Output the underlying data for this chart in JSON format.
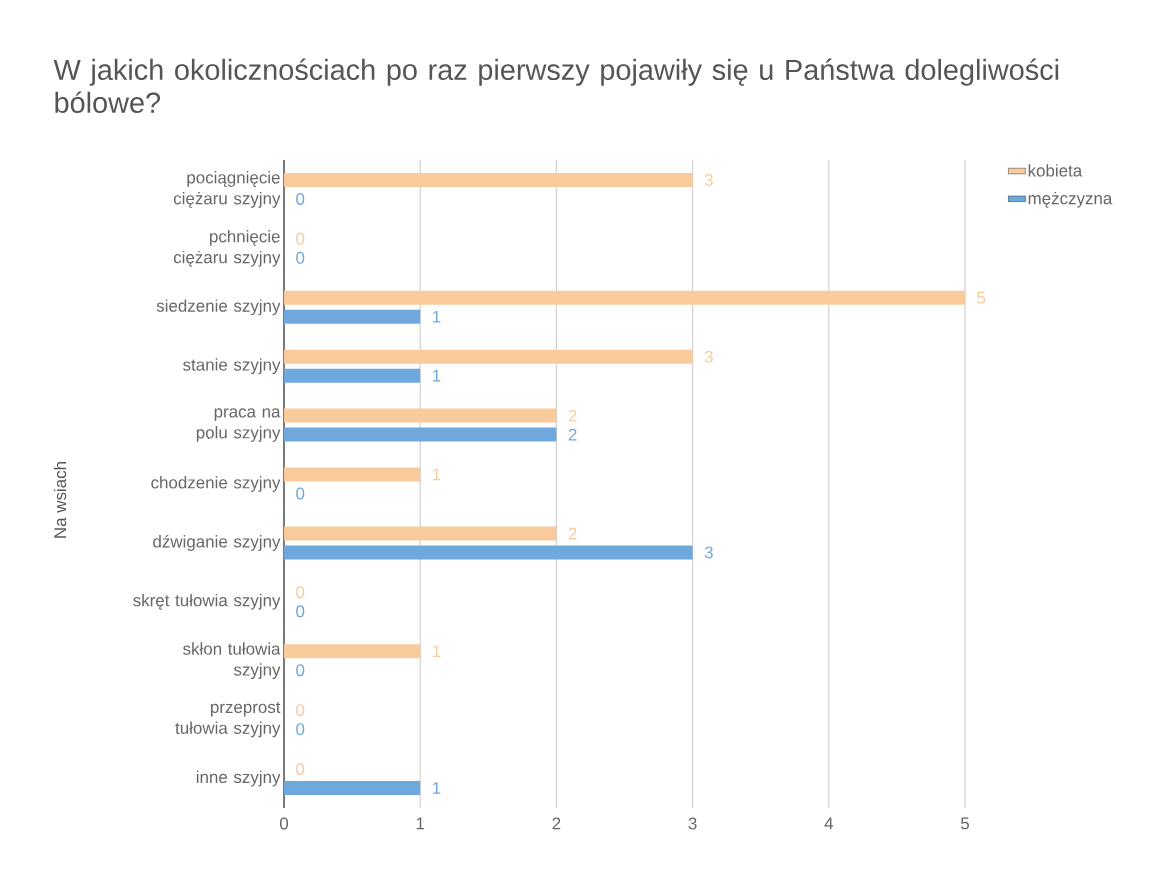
{
  "chart_data": {
    "type": "bar",
    "orientation": "horizontal",
    "title": "W jakich okolicznościach po raz pierwszy pojawiły się u Państwa dolegliwości bólowe?",
    "ylabel": "Na wsiach",
    "categories": [
      "pociągnięcie ciężaru szyjny",
      "pchnięcie ciężaru szyjny",
      "siedzenie szyjny",
      "stanie szyjny",
      "praca na polu szyjny",
      "chodzenie szyjny",
      "dźwiganie szyjny",
      "skręt tułowia szyjny",
      "skłon tułowia szyjny",
      "przeprost tułowia szyjny",
      "inne szyjny"
    ],
    "series": [
      {
        "name": "kobieta",
        "color": "#f9cb9c",
        "values": [
          3,
          0,
          5,
          3,
          2,
          1,
          2,
          0,
          1,
          0,
          0
        ]
      },
      {
        "name": "mężczyzna",
        "color": "#6fa8dc",
        "values": [
          0,
          0,
          1,
          1,
          2,
          0,
          3,
          0,
          0,
          0,
          1
        ]
      }
    ],
    "xlim": [
      0,
      5
    ],
    "xticks": [
      0,
      1,
      2,
      3,
      4,
      5
    ],
    "grid": "x",
    "legend": "top right",
    "data_labels": true
  }
}
